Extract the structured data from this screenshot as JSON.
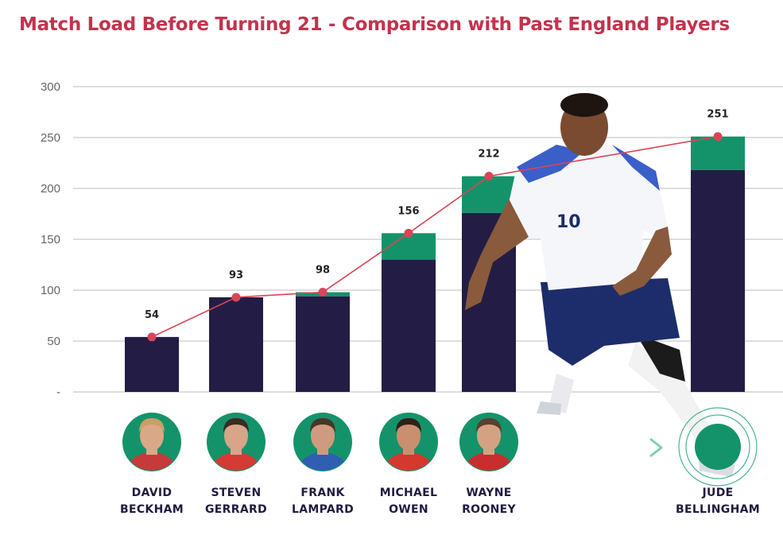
{
  "title": "Match Load Before Turning 21 - Comparison with Past England Players",
  "colors": {
    "title": "#c2334d",
    "bar_base": "#231d45",
    "bar_top": "#14936a",
    "line": "#d94556",
    "gridline": "#bdbdbd",
    "accent_green": "#4cb38c"
  },
  "chart_data": {
    "type": "bar",
    "stacked": true,
    "categories": [
      "DAVID BECKHAM",
      "STEVEN GERRARD",
      "FRANK LAMPARD",
      "MICHAEL OWEN",
      "WAYNE ROONEY",
      "JUDE BELLINGHAM"
    ],
    "category_lines": [
      [
        "DAVID",
        "BECKHAM"
      ],
      [
        "STEVEN",
        "GERRARD"
      ],
      [
        "FRANK",
        "LAMPARD"
      ],
      [
        "MICHAEL",
        "OWEN"
      ],
      [
        "WAYNE",
        "ROONEY"
      ],
      [
        "JUDE",
        "BELLINGHAM"
      ]
    ],
    "series": [
      {
        "values": [
          54,
          93,
          94,
          130,
          176,
          218
        ]
      },
      {
        "values": [
          0,
          0,
          4,
          26,
          36,
          33
        ]
      }
    ],
    "totals": [
      54,
      93,
      98,
      156,
      212,
      251
    ],
    "total_labels": [
      "54",
      "93",
      "98",
      "156",
      "212",
      "251"
    ],
    "yticks": [
      0,
      50,
      100,
      150,
      200,
      250,
      300
    ],
    "ytick_labels": [
      "-",
      "50",
      "100",
      "150",
      "200",
      "250",
      "300"
    ],
    "ylim": [
      0,
      300
    ],
    "grid": true,
    "line_overlay": true
  }
}
